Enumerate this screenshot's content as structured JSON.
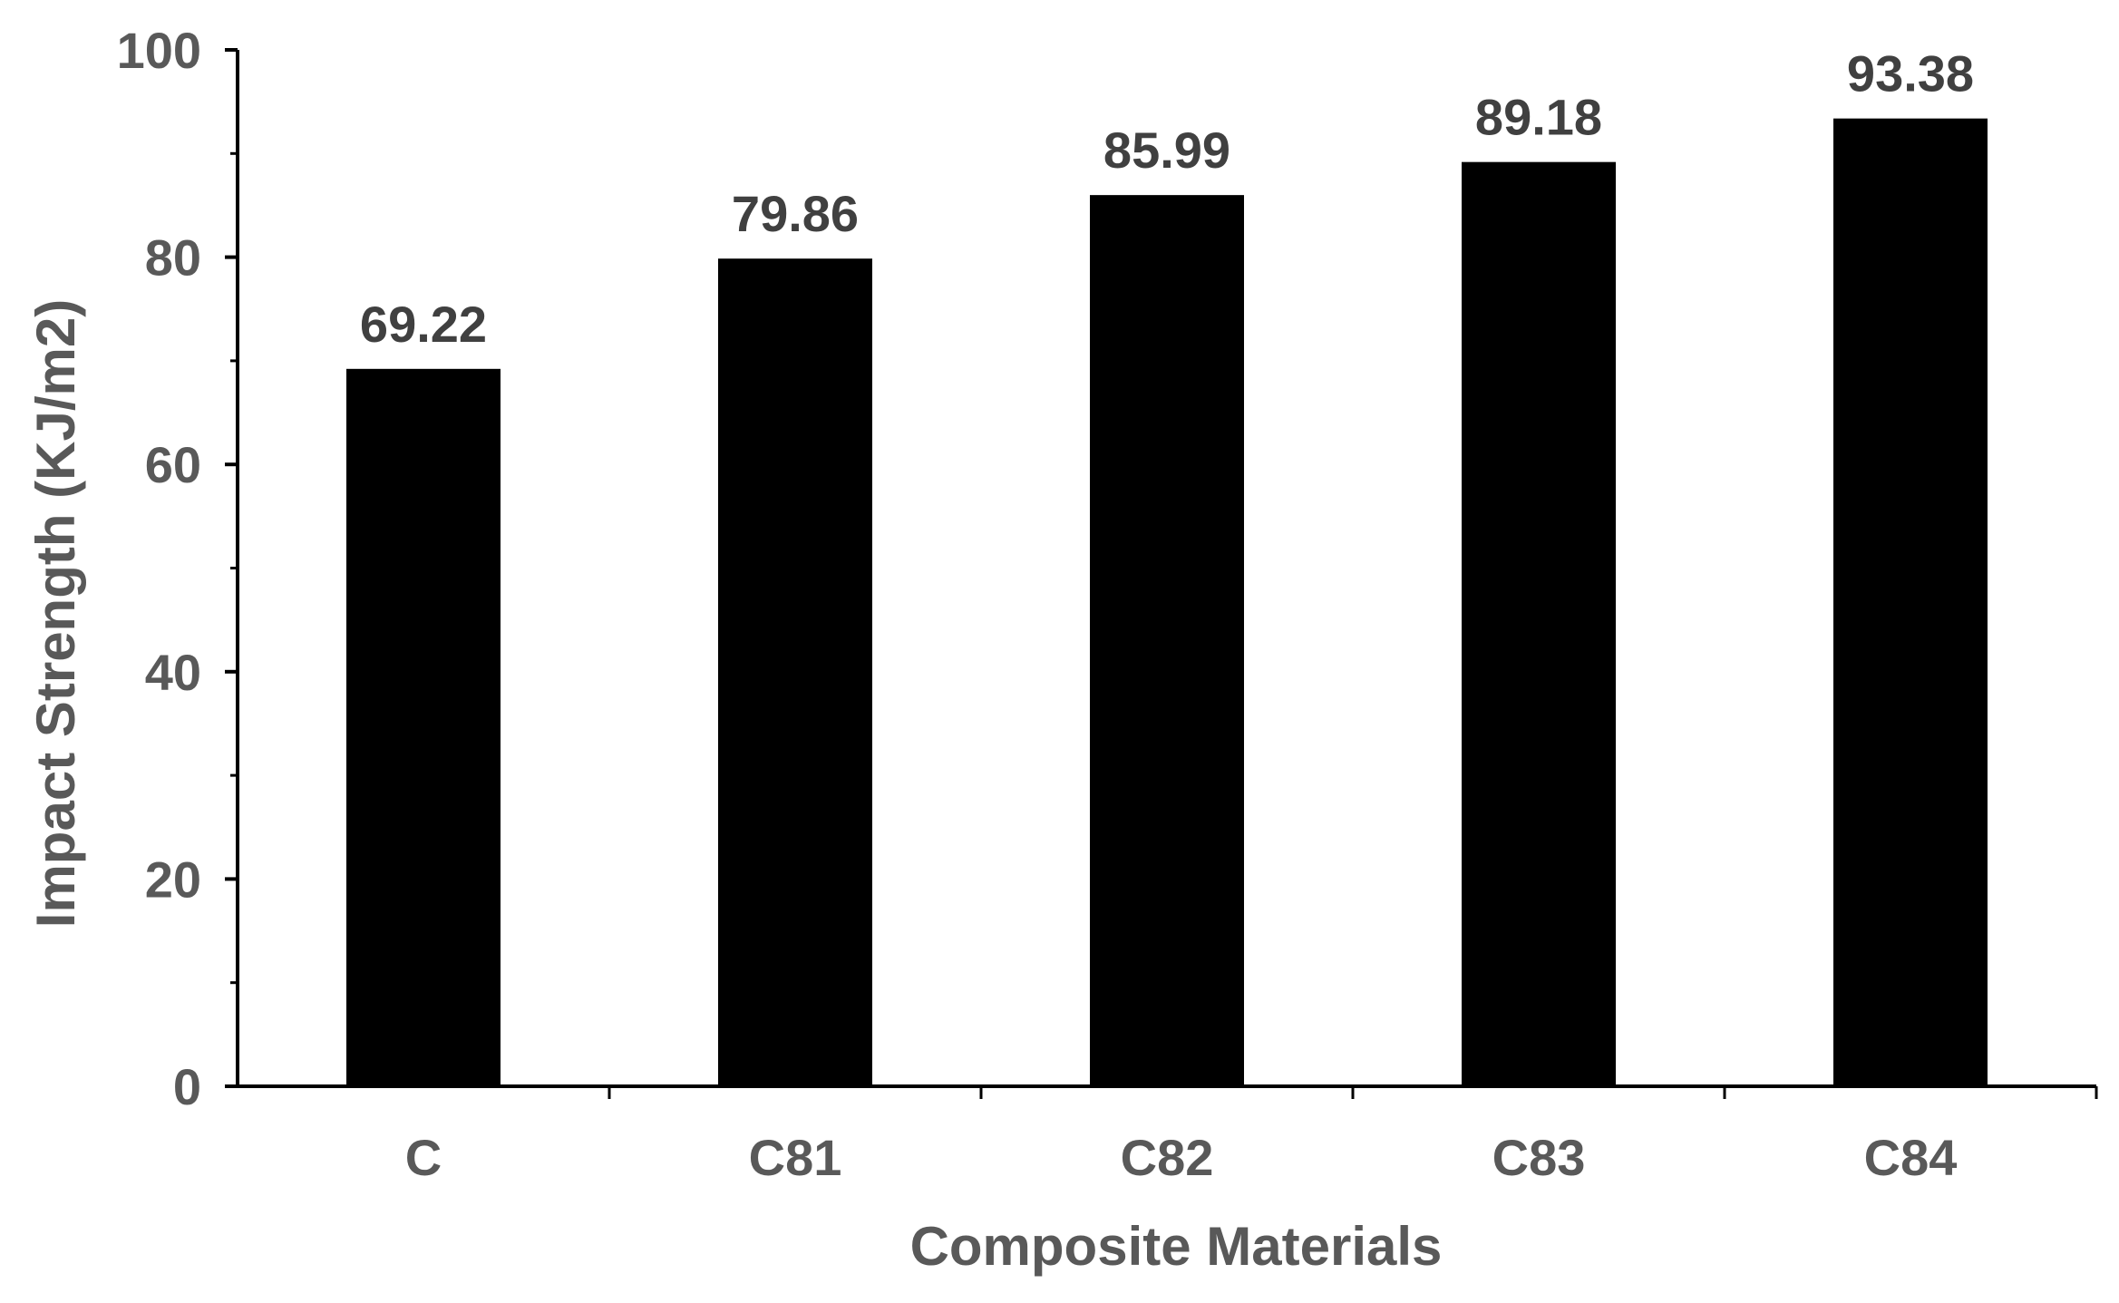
{
  "chart_data": {
    "type": "bar",
    "title": "",
    "xlabel": "Composite Materials",
    "ylabel": "Impact Strength (KJ/m2)",
    "categories": [
      "C",
      "C81",
      "C82",
      "C83",
      "C84"
    ],
    "values": [
      69.22,
      79.86,
      85.99,
      89.18,
      93.38
    ],
    "data_labels": [
      "69.22",
      "79.86",
      "85.99",
      "89.18",
      "93.38"
    ],
    "ylim": [
      0,
      100
    ],
    "yticks": [
      0,
      20,
      40,
      60,
      80,
      100
    ],
    "ytick_labels": [
      "0",
      "20",
      "40",
      "60",
      "80",
      "100"
    ],
    "minor_ytick_step": 10,
    "grid": false,
    "legend": "none",
    "bar_color": "#000000",
    "axis_color": "#000000"
  }
}
